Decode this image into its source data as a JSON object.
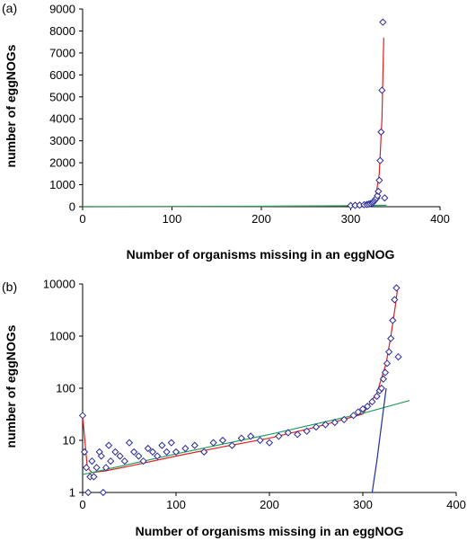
{
  "chart_data": [
    {
      "panel_label": "(a)",
      "type": "scatter",
      "xlabel": "Number of organisms missing in an eggNOG",
      "ylabel": "number of eggNOGs",
      "xlim": [
        0,
        400
      ],
      "ylim": [
        0,
        9000
      ],
      "x_ticks": [
        0,
        100,
        200,
        300,
        400
      ],
      "y_ticks": [
        0,
        1000,
        2000,
        3000,
        4000,
        5000,
        6000,
        7000,
        8000,
        9000
      ],
      "y_scale": "linear",
      "grid": false,
      "series": [
        {
          "kind": "markers",
          "marker": "diamond",
          "color": "#2b2b9a",
          "x": [
            300,
            305,
            310,
            315,
            318,
            320,
            322,
            324,
            325,
            326,
            327,
            328,
            329,
            330,
            331,
            332,
            333,
            334,
            335,
            336,
            338
          ],
          "y": [
            50,
            60,
            70,
            90,
            100,
            120,
            140,
            160,
            200,
            250,
            300,
            350,
            400,
            500,
            700,
            1200,
            2100,
            3400,
            5300,
            8400,
            400
          ]
        },
        {
          "kind": "line",
          "color": "#e02020",
          "x": [
            0,
            100,
            200,
            300,
            320,
            328,
            332,
            335,
            337
          ],
          "y": [
            2,
            6,
            18,
            40,
            120,
            450,
            1500,
            4000,
            7700
          ]
        },
        {
          "kind": "line",
          "color": "#20a060",
          "x": [
            0,
            100,
            200,
            300,
            340
          ],
          "y": [
            2,
            7,
            20,
            45,
            65
          ]
        }
      ]
    },
    {
      "panel_label": "(b)",
      "type": "scatter",
      "xlabel": "Number of organisms missing in an eggNOG",
      "ylabel": "number of eggNOGs",
      "xlim": [
        0,
        400
      ],
      "ylim": [
        1,
        10000
      ],
      "x_ticks": [
        0,
        100,
        200,
        300,
        400
      ],
      "y_ticks": [
        1,
        10,
        100,
        1000,
        10000
      ],
      "y_scale": "log",
      "grid": false,
      "series": [
        {
          "kind": "markers",
          "marker": "diamond",
          "color": "#2b2b9a",
          "x": [
            0,
            2,
            4,
            6,
            8,
            10,
            12,
            15,
            18,
            20,
            22,
            25,
            28,
            30,
            35,
            40,
            45,
            50,
            55,
            60,
            65,
            70,
            75,
            80,
            85,
            90,
            95,
            100,
            110,
            120,
            130,
            140,
            150,
            160,
            170,
            180,
            190,
            200,
            210,
            220,
            230,
            240,
            250,
            260,
            270,
            280,
            290,
            295,
            300,
            305,
            310,
            315,
            318,
            320,
            322,
            324,
            326,
            328,
            330,
            332,
            334,
            336,
            338
          ],
          "y": [
            30,
            6,
            3,
            1,
            2,
            4,
            2,
            3,
            6,
            5,
            1,
            3,
            8,
            4,
            6,
            5,
            4,
            9,
            6,
            5,
            4,
            7,
            6,
            5,
            8,
            6,
            9,
            6,
            7,
            8,
            6,
            9,
            10,
            8,
            11,
            12,
            10,
            9,
            12,
            14,
            13,
            15,
            18,
            20,
            22,
            25,
            30,
            35,
            40,
            45,
            55,
            70,
            90,
            100,
            150,
            200,
            300,
            500,
            900,
            2000,
            5000,
            8400,
            400
          ]
        },
        {
          "kind": "line",
          "color": "#e02020",
          "x": [
            0,
            5,
            10,
            25,
            50,
            100,
            150,
            200,
            250,
            300,
            315,
            325,
            330,
            335,
            337
          ],
          "y": [
            30,
            3,
            2.4,
            2.6,
            3.2,
            5,
            7.5,
            11,
            18,
            32,
            80,
            300,
            1000,
            4000,
            7700
          ]
        },
        {
          "kind": "line",
          "color": "#20a060",
          "x": [
            0,
            100,
            200,
            300,
            350
          ],
          "y": [
            2.2,
            5.5,
            13,
            33,
            58
          ]
        },
        {
          "kind": "line",
          "color": "#1f2fa8",
          "x": [
            310,
            315,
            320,
            325
          ],
          "y": [
            1,
            4,
            20,
            100
          ]
        }
      ]
    }
  ]
}
